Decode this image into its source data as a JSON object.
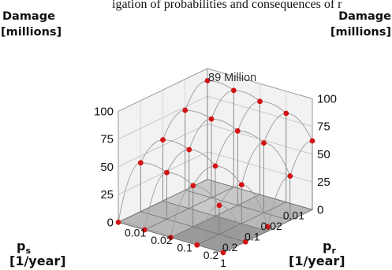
{
  "caption": "igation of probabilities and consequences of r",
  "chart_data": {
    "type": "scatter",
    "view": "3d",
    "zlabel_left": [
      "Damage",
      "[millions]"
    ],
    "zlabel_right": [
      "Damage",
      "[millions]"
    ],
    "z_ticks": [
      "0",
      "25",
      "50",
      "75",
      "100"
    ],
    "zlim": [
      0,
      100
    ],
    "x_axis": {
      "label": "p",
      "subscript": "s",
      "unit": "[1/year]",
      "ticks": [
        "0.01",
        "0.02",
        "0.1",
        "0.2",
        "1"
      ]
    },
    "y_axis": {
      "label": "p",
      "subscript": "r",
      "unit": "[1/year]",
      "ticks": [
        "0.01",
        "0.02",
        "0.1",
        "0.2",
        "1"
      ]
    },
    "annotation": "89 Million",
    "points": [
      {
        "ps": "0.01",
        "pr": "1",
        "damage": 62
      },
      {
        "ps": "0.01",
        "pr": "0.2",
        "damage": 80
      },
      {
        "ps": "0.01",
        "pr": "0.1",
        "damage": 84
      },
      {
        "ps": "0.01",
        "pr": "0.02",
        "damage": 87
      },
      {
        "ps": "0.01",
        "pr": "0.01",
        "damage": 89
      },
      {
        "ps": "0.02",
        "pr": "1",
        "damage": 40
      },
      {
        "ps": "0.02",
        "pr": "0.2",
        "damage": 63
      },
      {
        "ps": "0.02",
        "pr": "0.1",
        "damage": 67
      },
      {
        "ps": "0.02",
        "pr": "0.02",
        "damage": 71
      },
      {
        "ps": "0.02",
        "pr": "0.01",
        "damage": 72
      },
      {
        "ps": "0.1",
        "pr": "1",
        "damage": 4
      },
      {
        "ps": "0.1",
        "pr": "0.2",
        "damage": 35
      },
      {
        "ps": "0.1",
        "pr": "0.1",
        "damage": 45
      },
      {
        "ps": "0.1",
        "pr": "0.02",
        "damage": 53
      },
      {
        "ps": "0.1",
        "pr": "0.01",
        "damage": 55
      },
      {
        "ps": "0.2",
        "pr": "1",
        "damage": 0
      },
      {
        "ps": "0.2",
        "pr": "0.2",
        "damage": 26
      },
      {
        "ps": "0.2",
        "pr": "0.1",
        "damage": 37
      },
      {
        "ps": "0.2",
        "pr": "0.02",
        "damage": 42
      },
      {
        "ps": "0.2",
        "pr": "0.01",
        "damage": 44
      },
      {
        "ps": "1",
        "pr": "1",
        "damage": 0
      },
      {
        "ps": "1",
        "pr": "0.2",
        "damage": 0
      },
      {
        "ps": "1",
        "pr": "0.1",
        "damage": 0
      },
      {
        "ps": "1",
        "pr": "0.02",
        "damage": 0
      },
      {
        "ps": "1",
        "pr": "0.01",
        "damage": 0
      }
    ],
    "colors": {
      "point": "#d41414",
      "surface": "#a0a0a0",
      "floor": "#b8b8b8",
      "wall": "#f2f2f2"
    }
  }
}
